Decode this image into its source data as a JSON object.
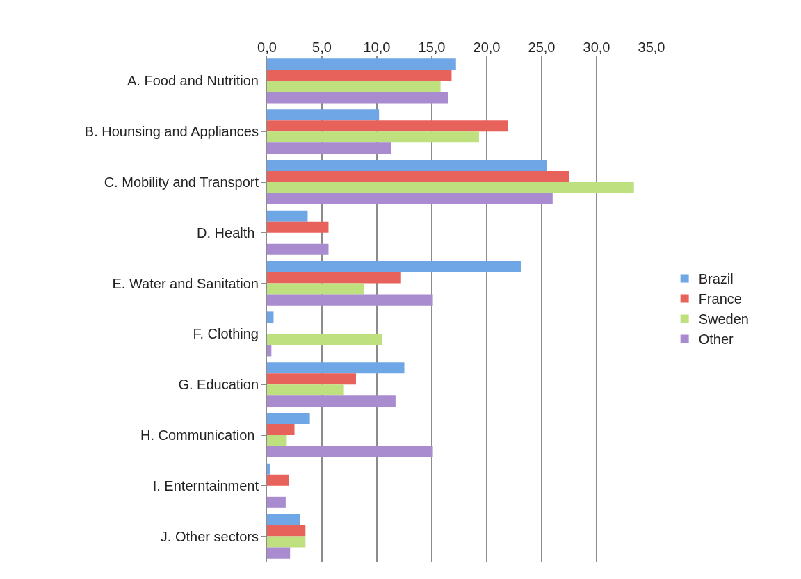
{
  "chart_data": {
    "type": "bar",
    "orientation": "horizontal",
    "categories": [
      "A. Food and Nutrition",
      "B. Hounsing and Appliances",
      "C. Mobility and Transport",
      "D. Health ",
      "E. Water and Sanitation",
      "F. Clothing",
      "G. Education",
      "H. Communication ",
      "I. Enterntainment",
      "J. Other sectors"
    ],
    "series": [
      {
        "name": "Brazil",
        "color": "#6fa6e6",
        "values": [
          17.2,
          10.2,
          25.5,
          3.7,
          23.1,
          0.6,
          12.5,
          3.9,
          0.3,
          3.0
        ]
      },
      {
        "name": "France",
        "color": "#e8625c",
        "values": [
          16.8,
          21.9,
          27.5,
          5.6,
          12.2,
          null,
          8.1,
          2.5,
          2.0,
          3.5
        ]
      },
      {
        "name": "Sweden",
        "color": "#bfe07e",
        "values": [
          15.8,
          19.3,
          33.4,
          null,
          8.8,
          10.5,
          7.0,
          1.8,
          null,
          3.5
        ]
      },
      {
        "name": "Other",
        "color": "#a98bd0",
        "values": [
          16.5,
          11.3,
          26.0,
          5.6,
          15.1,
          0.4,
          11.7,
          15.1,
          1.7,
          2.1
        ]
      }
    ],
    "xlim": [
      0,
      35
    ],
    "xticks": [
      {
        "value": 0,
        "label": "0,0"
      },
      {
        "value": 5,
        "label": "5,0"
      },
      {
        "value": 10,
        "label": "10,0"
      },
      {
        "value": 15,
        "label": "15,0"
      },
      {
        "value": 20,
        "label": "20,0"
      },
      {
        "value": 25,
        "label": "25,0"
      },
      {
        "value": 30,
        "label": "30,0"
      },
      {
        "value": 35,
        "label": "35,0"
      }
    ],
    "grid": "x",
    "legend": "right"
  }
}
